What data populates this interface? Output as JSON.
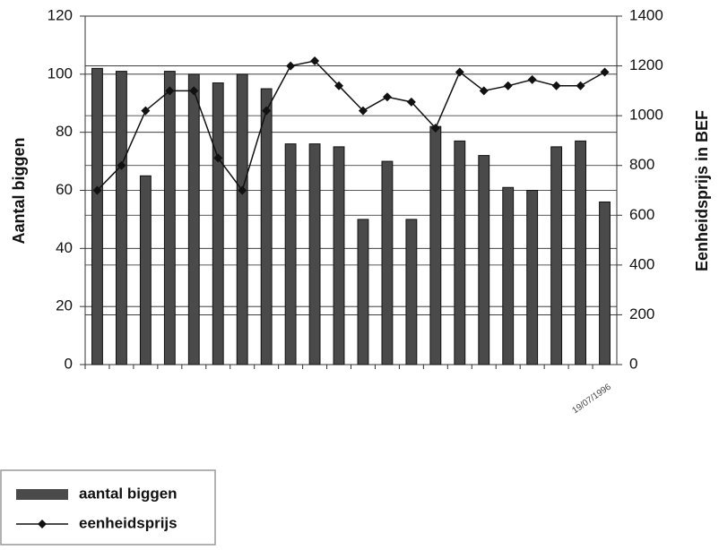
{
  "chart_data": {
    "type": "bar_line",
    "categories": [
      null,
      null,
      null,
      null,
      null,
      null,
      null,
      null,
      null,
      null,
      null,
      null,
      null,
      null,
      null,
      null,
      null,
      null,
      null,
      null,
      null,
      "19/07/1996"
    ],
    "series": [
      {
        "name": "aantal biggen",
        "type": "bar",
        "color": "#4a4a4a",
        "values": [
          102,
          101,
          65,
          101,
          100,
          97,
          100,
          95,
          76,
          76,
          75,
          50,
          70,
          50,
          82,
          77,
          72,
          61,
          60,
          75,
          77,
          56
        ]
      },
      {
        "name": "eenheidsprijs",
        "type": "line",
        "axis": "y2",
        "color": "#111111",
        "values": [
          700,
          800,
          1020,
          1100,
          1100,
          830,
          700,
          1020,
          1200,
          1220,
          1120,
          1020,
          1075,
          1055,
          950,
          1175,
          1100,
          1120,
          1145,
          1120,
          1120,
          1175
        ]
      }
    ],
    "ylabel": "Aantal biggen",
    "y2label": "Eenheidsprijs in BEF",
    "ylim": [
      0,
      120
    ],
    "yticks": [
      0,
      20,
      40,
      60,
      80,
      100,
      120
    ],
    "y2lim": [
      0,
      1400
    ],
    "y2ticks": [
      0,
      200,
      400,
      600,
      800,
      1000,
      1200,
      1400
    ],
    "grid": true,
    "legend": "bottom-left"
  }
}
